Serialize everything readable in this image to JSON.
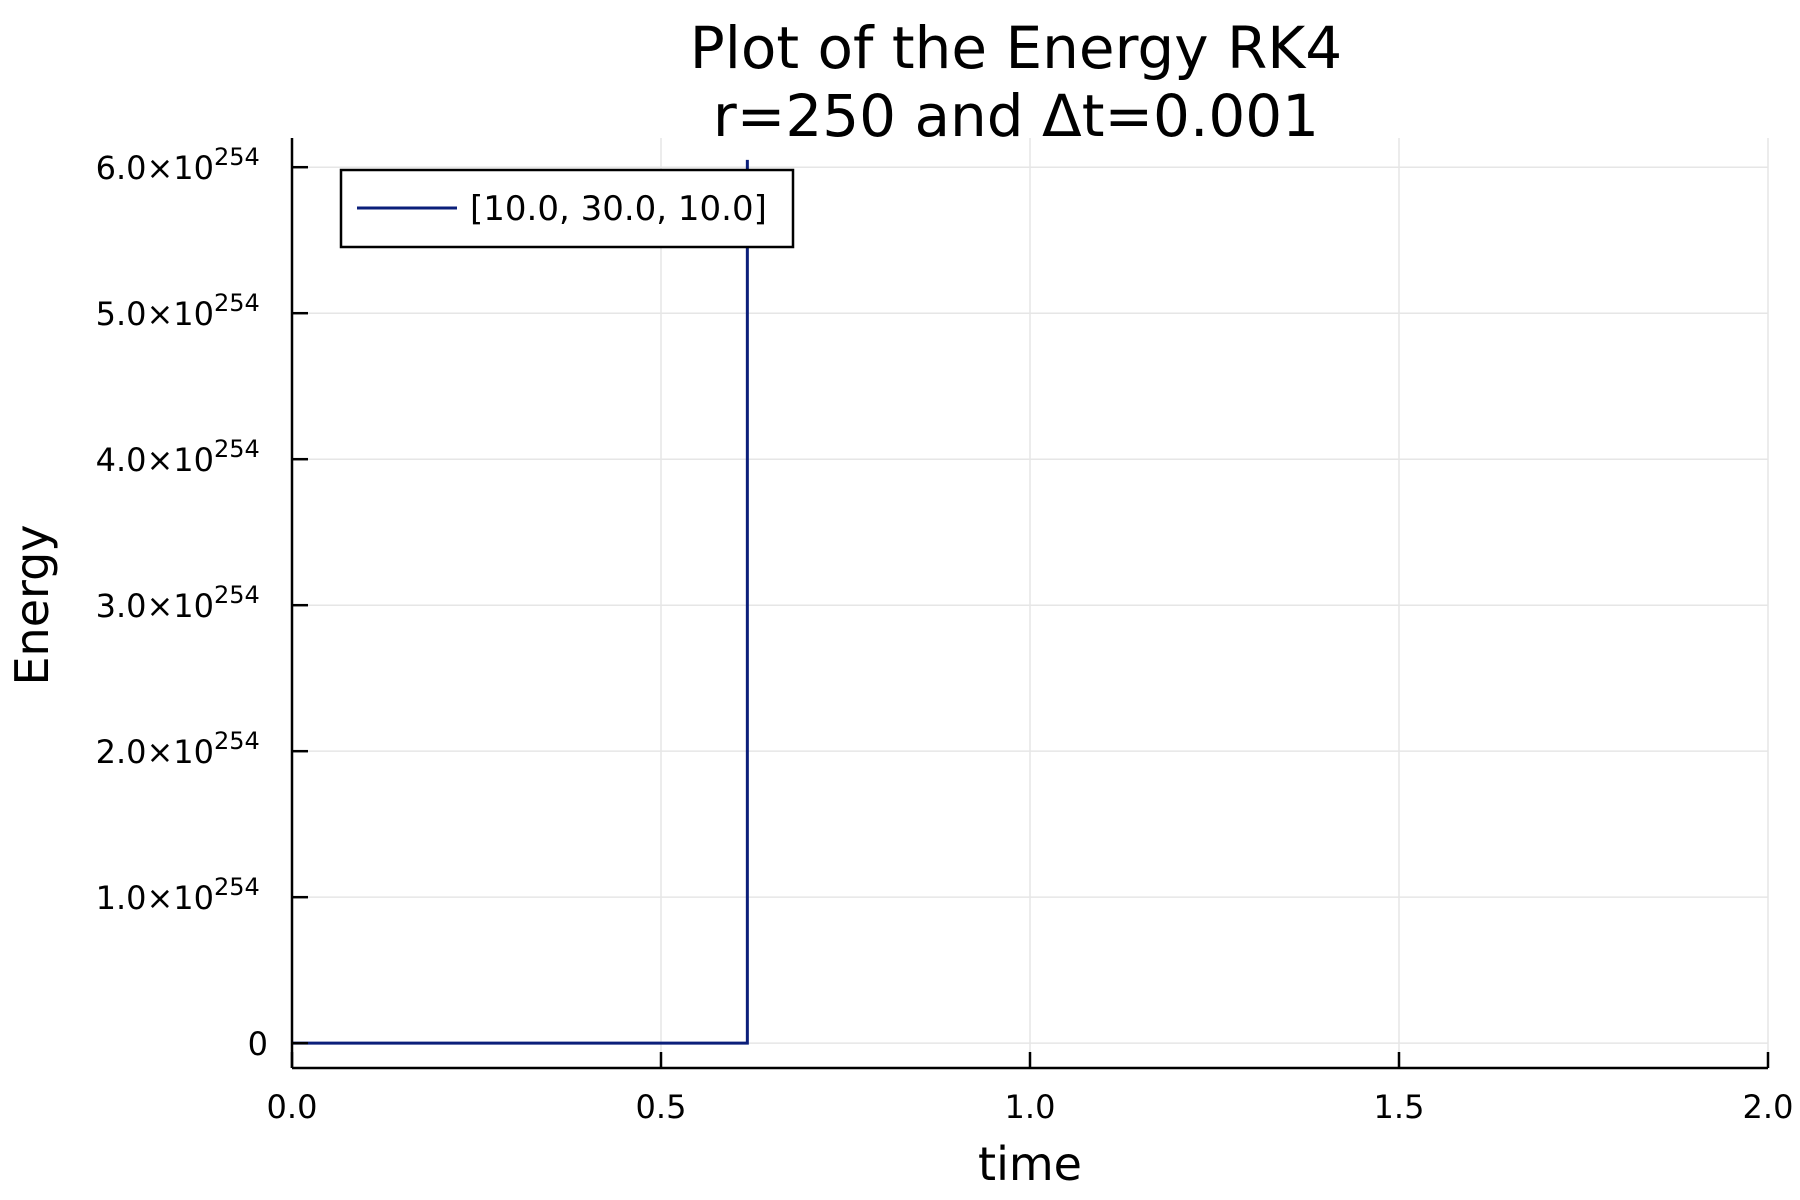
{
  "chart_data": {
    "type": "line",
    "title": [
      "Plot of the Energy RK4",
      "r=250 and Δt=0.001"
    ],
    "xlabel": "time",
    "ylabel": "Energy",
    "xlim": [
      0.0,
      2.0
    ],
    "ylim": [
      -1.7e+253,
      6.2e+254
    ],
    "xticks": [
      {
        "value": 0.0,
        "label": "0.0"
      },
      {
        "value": 0.5,
        "label": "0.5"
      },
      {
        "value": 1.0,
        "label": "1.0"
      },
      {
        "value": 1.5,
        "label": "1.5"
      },
      {
        "value": 2.0,
        "label": "2.0"
      }
    ],
    "yticks": [
      {
        "value": 0,
        "mantissa": "0",
        "exponent": ""
      },
      {
        "value": 1e+254,
        "mantissa": "1.0×10",
        "exponent": "254"
      },
      {
        "value": 2e+254,
        "mantissa": "2.0×10",
        "exponent": "254"
      },
      {
        "value": 3e+254,
        "mantissa": "3.0×10",
        "exponent": "254"
      },
      {
        "value": 4e+254,
        "mantissa": "4.0×10",
        "exponent": "254"
      },
      {
        "value": 5e+254,
        "mantissa": "5.0×10",
        "exponent": "254"
      },
      {
        "value": 6e+254,
        "mantissa": "6.0×10",
        "exponent": "254"
      }
    ],
    "grid": true,
    "legend_position": "top-left",
    "series": [
      {
        "name": "[10.0, 30.0, 10.0]",
        "color": "#0b1f7a",
        "x": [
          0.0,
          0.3,
          0.616,
          0.617,
          0.617
        ],
        "y": [
          0,
          0,
          0,
          0,
          6.05e+254
        ]
      }
    ]
  }
}
